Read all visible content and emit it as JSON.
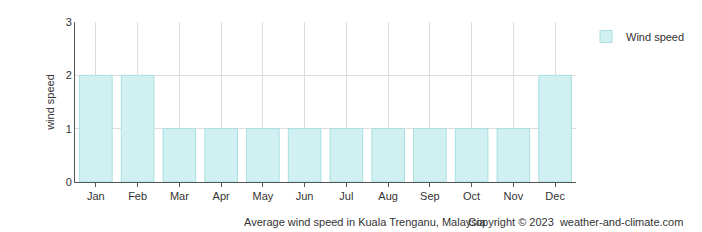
{
  "chart_data": {
    "type": "bar",
    "title": "Average wind speed in Kuala Trenganu, Malaysia",
    "annotations": [
      "Copyright © 2023  weather-and-climate.com"
    ],
    "ylabel": "wind speed",
    "categories": [
      "Jan",
      "Feb",
      "Mar",
      "Apr",
      "May",
      "Jun",
      "Jul",
      "Aug",
      "Sep",
      "Oct",
      "Nov",
      "Dec"
    ],
    "series": [
      {
        "name": "Wind speed",
        "color": "#d1f0f1",
        "values": [
          2,
          2,
          1,
          1,
          1,
          1,
          1,
          1,
          1,
          1,
          1,
          2
        ]
      }
    ],
    "ylim": [
      0,
      3
    ],
    "yticks": [
      0,
      1,
      2,
      3
    ],
    "grid": true,
    "legend": "right"
  }
}
